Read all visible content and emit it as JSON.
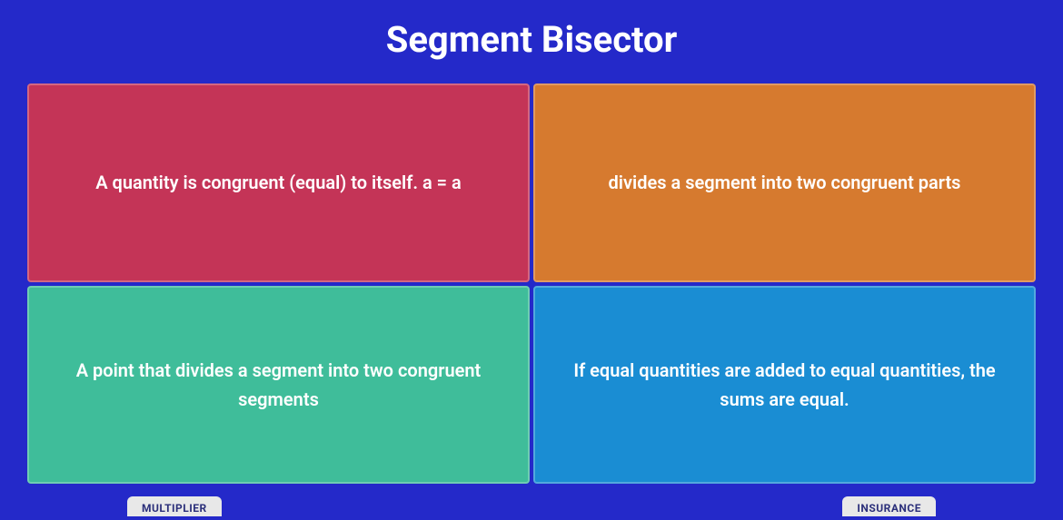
{
  "title": "Segment Bisector",
  "cards": [
    {
      "text": "A quantity is congruent (equal) to itself. a = a",
      "color": "#c43457"
    },
    {
      "text": "divides a segment into two congruent parts",
      "color": "#d67a2f"
    },
    {
      "text": "A point that divides a segment into two congruent segments",
      "color": "#3fbd9a"
    },
    {
      "text": "If equal quantities are added to equal quantities, the sums are equal.",
      "color": "#1a8dd3"
    }
  ],
  "bottom": {
    "left_label": "MULTIPLIER",
    "right_label": "INSURANCE"
  },
  "style": {
    "background_color": "#2429c9",
    "title_color": "#ffffff",
    "title_fontsize": 40,
    "card_text_color": "#ffffff",
    "card_text_fontsize": 20,
    "card_border_color": "rgba(255,255,255,0.25)"
  }
}
